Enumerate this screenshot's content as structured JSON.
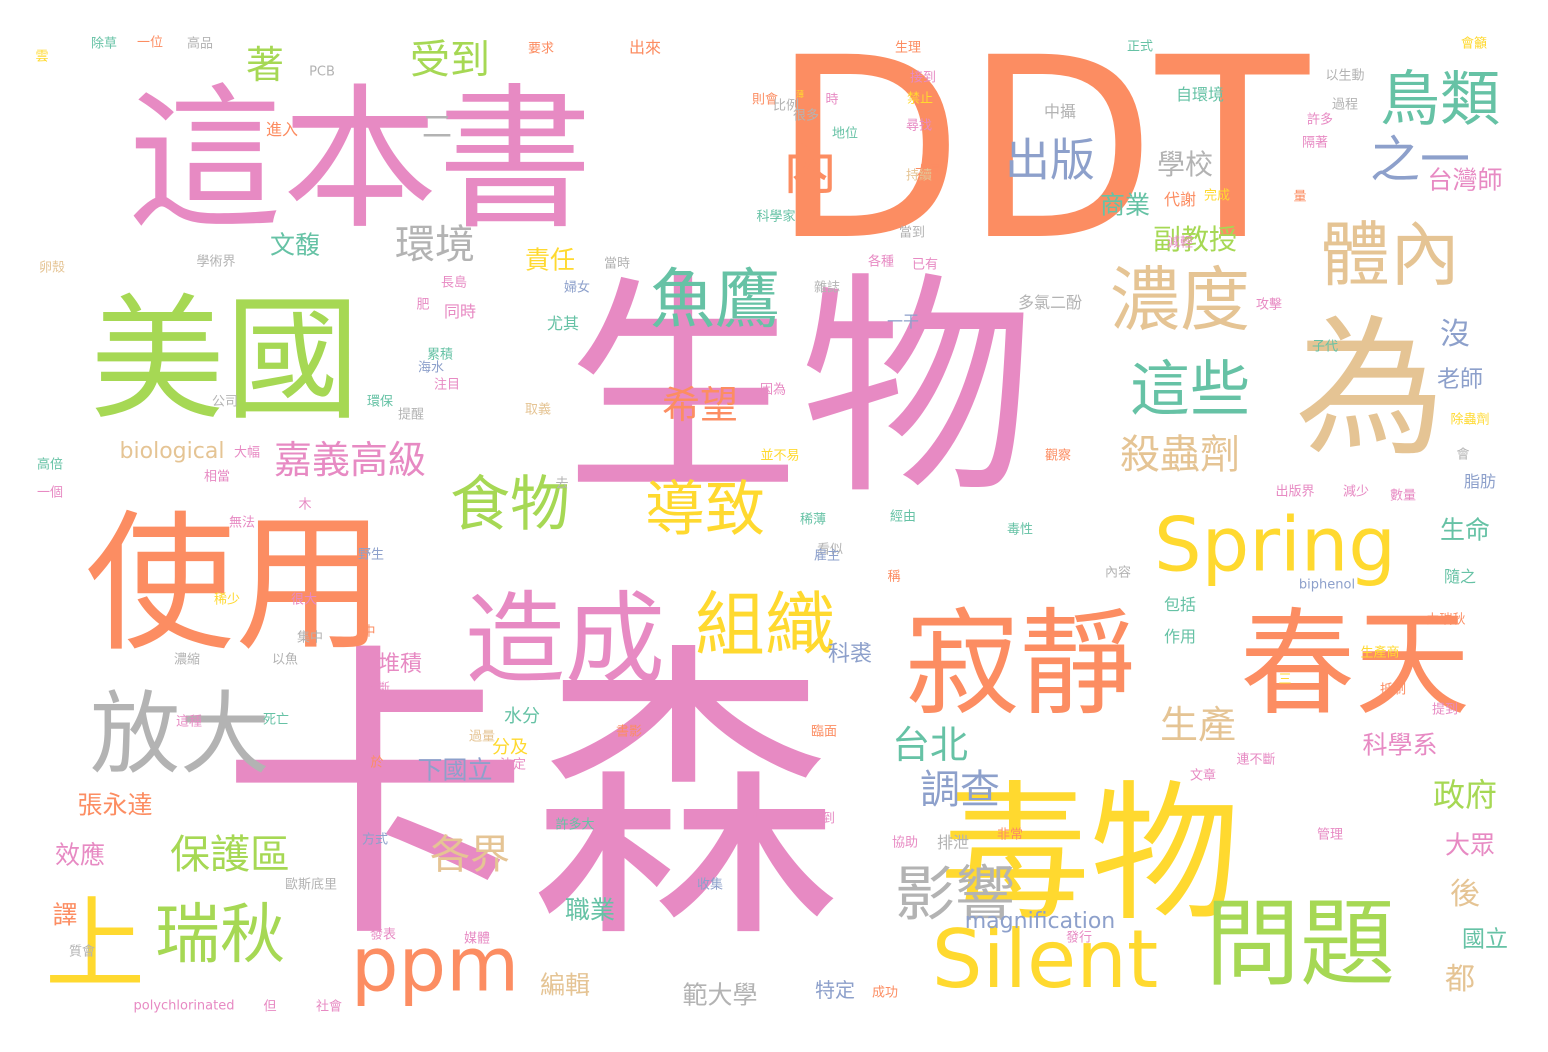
{
  "palette": {
    "pink": "#e78ac3",
    "orange": "#fc8d62",
    "green": "#a6d854",
    "yellow": "#ffd92f",
    "tan": "#e5c494",
    "teal": "#66c2a5",
    "blue": "#8da0cb",
    "gray": "#b3b3b3"
  },
  "words": [
    {
      "text": "DDT",
      "color": "orange"
    },
    {
      "text": "卡森",
      "color": "pink"
    },
    {
      "text": "生物",
      "color": "pink"
    },
    {
      "text": "這本書",
      "color": "pink"
    },
    {
      "text": "美國",
      "color": "green"
    },
    {
      "text": "使用",
      "color": "orange"
    },
    {
      "text": "為",
      "color": "tan"
    },
    {
      "text": "毒物",
      "color": "yellow"
    },
    {
      "text": "寂靜",
      "color": "orange"
    },
    {
      "text": "春天",
      "color": "orange"
    },
    {
      "text": "放大",
      "color": "gray"
    },
    {
      "text": "上",
      "color": "yellow"
    },
    {
      "text": "造成",
      "color": "pink"
    },
    {
      "text": "問題",
      "color": "green"
    },
    {
      "text": "Silent",
      "color": "yellow"
    },
    {
      "text": "Spring",
      "color": "yellow"
    },
    {
      "text": "ppm",
      "color": "orange"
    },
    {
      "text": "組織",
      "color": "yellow"
    },
    {
      "text": "魚鷹",
      "color": "teal"
    },
    {
      "text": "體內",
      "color": "tan"
    },
    {
      "text": "濃度",
      "color": "tan"
    },
    {
      "text": "食物",
      "color": "green"
    },
    {
      "text": "導致",
      "color": "yellow"
    },
    {
      "text": "影響",
      "color": "gray"
    },
    {
      "text": "瑞秋",
      "color": "green"
    },
    {
      "text": "內",
      "color": "orange"
    },
    {
      "text": "之一",
      "color": "blue"
    },
    {
      "text": "鳥類",
      "color": "teal"
    },
    {
      "text": "這些",
      "color": "teal"
    },
    {
      "text": "出版",
      "color": "blue"
    },
    {
      "text": "保護區",
      "color": "green"
    },
    {
      "text": "環境",
      "color": "gray"
    },
    {
      "text": "受到",
      "color": "green"
    },
    {
      "text": "殺蟲劑",
      "color": "tan"
    },
    {
      "text": "各界",
      "color": "tan"
    },
    {
      "text": "政府",
      "color": "green"
    },
    {
      "text": "調查",
      "color": "blue"
    },
    {
      "text": "嘉義高級",
      "color": "pink"
    },
    {
      "text": "希望",
      "color": "orange"
    },
    {
      "text": "生產",
      "color": "tan"
    },
    {
      "text": "台北",
      "color": "teal"
    },
    {
      "text": "著",
      "color": "green"
    },
    {
      "text": "後",
      "color": "tan"
    },
    {
      "text": "都",
      "color": "tan"
    },
    {
      "text": "沒",
      "color": "blue"
    },
    {
      "text": "學校",
      "color": "gray"
    },
    {
      "text": "副教授",
      "color": "green"
    },
    {
      "text": "台灣師",
      "color": "pink"
    },
    {
      "text": "商業",
      "color": "teal"
    },
    {
      "text": "生命",
      "color": "teal"
    },
    {
      "text": "科學系",
      "color": "pink"
    },
    {
      "text": "大眾",
      "color": "pink"
    },
    {
      "text": "國立",
      "color": "teal"
    },
    {
      "text": "老師",
      "color": "blue"
    },
    {
      "text": "責任",
      "color": "yellow"
    },
    {
      "text": "文馥",
      "color": "teal"
    },
    {
      "text": "下國立",
      "color": "blue"
    },
    {
      "text": "張永達",
      "color": "orange"
    },
    {
      "text": "效應",
      "color": "pink"
    },
    {
      "text": "譯",
      "color": "orange"
    },
    {
      "text": "職業",
      "color": "teal"
    },
    {
      "text": "範大學",
      "color": "gray"
    },
    {
      "text": "編輯",
      "color": "tan"
    },
    {
      "text": "科裘",
      "color": "blue"
    },
    {
      "text": "堆積",
      "color": "pink"
    },
    {
      "text": "biological",
      "color": "tan"
    },
    {
      "text": "magnification",
      "color": "blue"
    },
    {
      "text": "特定",
      "color": "blue"
    },
    {
      "text": "水分",
      "color": "teal"
    },
    {
      "text": "分及",
      "color": "yellow"
    },
    {
      "text": "尤其",
      "color": "teal"
    },
    {
      "text": "同時",
      "color": "pink"
    },
    {
      "text": "一干",
      "color": "blue"
    },
    {
      "text": "二",
      "color": "gray"
    },
    {
      "text": "進入",
      "color": "orange"
    },
    {
      "text": "中攝",
      "color": "gray"
    },
    {
      "text": "自環境",
      "color": "teal"
    },
    {
      "text": "代謝",
      "color": "orange"
    },
    {
      "text": "包括",
      "color": "teal"
    },
    {
      "text": "作用",
      "color": "teal"
    },
    {
      "text": "隨之",
      "color": "teal"
    },
    {
      "text": "脂肪",
      "color": "blue"
    },
    {
      "text": "排泄",
      "color": "gray"
    },
    {
      "text": "多氯二酚",
      "color": "gray"
    },
    {
      "text": "PCB",
      "color": "gray"
    },
    {
      "text": "polychlorinated",
      "color": "pink"
    },
    {
      "text": "biphenol",
      "color": "blue"
    },
    {
      "text": "高品",
      "color": "gray"
    },
    {
      "text": "一位",
      "color": "orange"
    },
    {
      "text": "除草",
      "color": "teal"
    },
    {
      "text": "要求",
      "color": "orange"
    },
    {
      "text": "出來",
      "color": "orange"
    },
    {
      "text": "正式",
      "color": "teal"
    },
    {
      "text": "會籲",
      "color": "yellow"
    },
    {
      "text": "以生動",
      "color": "gray"
    },
    {
      "text": "過程",
      "color": "gray"
    },
    {
      "text": "許多",
      "color": "pink"
    },
    {
      "text": "許多大",
      "color": "teal"
    },
    {
      "text": "生理",
      "color": "orange"
    },
    {
      "text": "接到",
      "color": "pink"
    },
    {
      "text": "禁止",
      "color": "yellow"
    },
    {
      "text": "尋找",
      "color": "pink"
    },
    {
      "text": "地位",
      "color": "teal"
    },
    {
      "text": "大量",
      "color": "orange"
    },
    {
      "text": "完成",
      "color": "yellow"
    },
    {
      "text": "科學家",
      "color": "teal"
    },
    {
      "text": "當到",
      "color": "gray"
    },
    {
      "text": "各種",
      "color": "pink"
    },
    {
      "text": "已有",
      "color": "pink"
    },
    {
      "text": "雜誌",
      "color": "gray"
    },
    {
      "text": "攻擊",
      "color": "pink"
    },
    {
      "text": "子代",
      "color": "teal"
    },
    {
      "text": "除蟲劑",
      "color": "yellow"
    },
    {
      "text": "會",
      "color": "gray"
    },
    {
      "text": "減少",
      "color": "pink"
    },
    {
      "text": "數量",
      "color": "pink"
    },
    {
      "text": "出版界",
      "color": "pink"
    },
    {
      "text": "婦女",
      "color": "blue"
    },
    {
      "text": "經由",
      "color": "teal"
    },
    {
      "text": "毒性",
      "color": "teal"
    },
    {
      "text": "看似",
      "color": "gray"
    },
    {
      "text": "內容",
      "color": "gray"
    },
    {
      "text": "生產商",
      "color": "yellow"
    },
    {
      "text": "力瑞秋",
      "color": "orange"
    },
    {
      "text": "抵制",
      "color": "orange"
    },
    {
      "text": "提到",
      "color": "pink"
    },
    {
      "text": "方式",
      "color": "blue"
    },
    {
      "text": "發表",
      "color": "pink"
    },
    {
      "text": "收集",
      "color": "blue"
    },
    {
      "text": "歐斯底里",
      "color": "gray"
    },
    {
      "text": "質會",
      "color": "gray"
    },
    {
      "text": "社會",
      "color": "pink"
    },
    {
      "text": "成功",
      "color": "orange"
    },
    {
      "text": "媒體",
      "color": "pink"
    },
    {
      "text": "發行",
      "color": "pink"
    },
    {
      "text": "協助",
      "color": "pink"
    },
    {
      "text": "非常",
      "color": "orange"
    },
    {
      "text": "管理",
      "color": "pink"
    },
    {
      "text": "學術界",
      "color": "gray"
    },
    {
      "text": "卵殼",
      "color": "tan"
    },
    {
      "text": "公司",
      "color": "gray"
    },
    {
      "text": "提醒",
      "color": "gray"
    },
    {
      "text": "取義",
      "color": "tan"
    },
    {
      "text": "注目",
      "color": "pink"
    },
    {
      "text": "累積",
      "color": "teal"
    },
    {
      "text": "海水",
      "color": "blue"
    },
    {
      "text": "長島",
      "color": "pink"
    },
    {
      "text": "當時",
      "color": "gray"
    },
    {
      "text": "高倍",
      "color": "teal"
    },
    {
      "text": "一個",
      "color": "pink"
    },
    {
      "text": "無法",
      "color": "pink"
    },
    {
      "text": "野生",
      "color": "blue"
    },
    {
      "text": "很大",
      "color": "pink"
    },
    {
      "text": "稀少",
      "color": "yellow"
    },
    {
      "text": "集中",
      "color": "gray"
    },
    {
      "text": "以魚",
      "color": "gray"
    },
    {
      "text": "濃縮",
      "color": "gray"
    },
    {
      "text": "死亡",
      "color": "teal"
    },
    {
      "text": "這種",
      "color": "pink"
    },
    {
      "text": "不斷",
      "color": "pink"
    },
    {
      "text": "過量",
      "color": "tan"
    },
    {
      "text": "決定",
      "color": "pink"
    },
    {
      "text": "於",
      "color": "orange"
    },
    {
      "text": "則會",
      "color": "orange"
    },
    {
      "text": "比例",
      "color": "gray"
    },
    {
      "text": "很多",
      "color": "gray"
    },
    {
      "text": "薄",
      "color": "yellow"
    },
    {
      "text": "木",
      "color": "pink"
    },
    {
      "text": "大幅",
      "color": "pink"
    },
    {
      "text": "相當",
      "color": "pink"
    },
    {
      "text": "稀薄",
      "color": "teal"
    },
    {
      "text": "並不易",
      "color": "yellow"
    },
    {
      "text": "雇主",
      "color": "blue"
    },
    {
      "text": "觀察",
      "color": "orange"
    },
    {
      "text": "持續",
      "color": "tan"
    },
    {
      "text": "隔著",
      "color": "pink"
    },
    {
      "text": "減輕",
      "color": "pink"
    },
    {
      "text": "量",
      "color": "orange"
    },
    {
      "text": "環保",
      "color": "teal"
    },
    {
      "text": "因為",
      "color": "pink"
    },
    {
      "text": "文章",
      "color": "pink"
    },
    {
      "text": "前",
      "color": "pink"
    },
    {
      "text": "連到",
      "color": "pink"
    },
    {
      "text": "三",
      "color": "yellow"
    },
    {
      "text": "連不斷",
      "color": "pink"
    },
    {
      "text": "臨面",
      "color": "orange"
    },
    {
      "text": "書影",
      "color": "orange"
    },
    {
      "text": "中",
      "color": "orange"
    },
    {
      "text": "去",
      "color": "gray"
    },
    {
      "text": "但",
      "color": "pink"
    },
    {
      "text": "稱",
      "color": "orange"
    },
    {
      "text": "肥",
      "color": "pink"
    },
    {
      "text": "雲",
      "color": "yellow"
    },
    {
      "text": "時",
      "color": "pink"
    },
    {
      "text": "馬",
      "color": "blue"
    },
    {
      "text": "良",
      "color": "pink"
    }
  ]
}
